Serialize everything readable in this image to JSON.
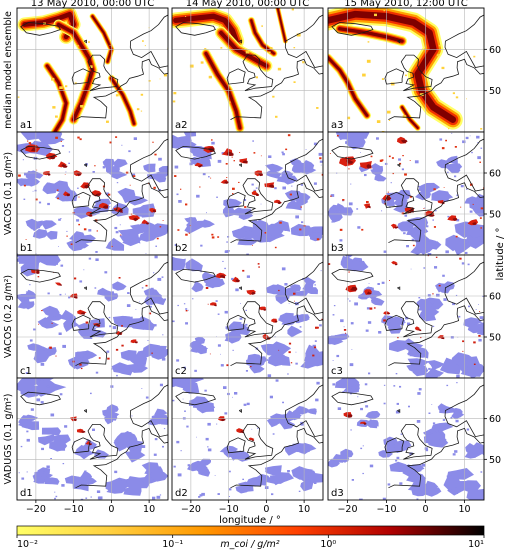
{
  "chart_data": {
    "type": "heatmap",
    "column_titles": [
      "13 May 2010, 00:00 UTC",
      "14 May 2010, 00:00 UTC",
      "15 May 2010, 12:00 UTC"
    ],
    "row_labels": [
      "median model ensemble",
      "VACOS (0.1 g/m²)",
      "VACOS (0.2 g/m²)",
      "VADUGS (0.1 g/m²)"
    ],
    "panel_labels": [
      [
        "a1",
        "a2",
        "a3"
      ],
      [
        "b1",
        "b2",
        "b3"
      ],
      [
        "c1",
        "c2",
        "c3"
      ],
      [
        "d1",
        "d2",
        "d3"
      ]
    ],
    "xlabel": "longitude / °",
    "ylabel": "latitude / °",
    "x_ticks": [
      -20,
      -10,
      0,
      10
    ],
    "x_tick_labels": [
      "−20",
      "−10",
      "0",
      "10"
    ],
    "y_ticks": [
      60,
      50
    ],
    "y_tick_labels": [
      "60",
      "50"
    ],
    "xlim": [
      -25,
      15
    ],
    "ylim": [
      40,
      70
    ],
    "grid": true,
    "colorbar": {
      "label": "m_coi / g/m²",
      "scale": "log",
      "range": [
        0.01,
        10
      ],
      "ticks": [
        0.01,
        0.1,
        1,
        10
      ],
      "tick_labels": [
        "10⁻²",
        "10⁻¹",
        "10⁰",
        "10¹"
      ],
      "colors": [
        "#ffff66",
        "#ffb000",
        "#ff5a00",
        "#d40000",
        "#7a0000",
        "#000000"
      ]
    },
    "cloud_color": "#8b8be8"
  }
}
